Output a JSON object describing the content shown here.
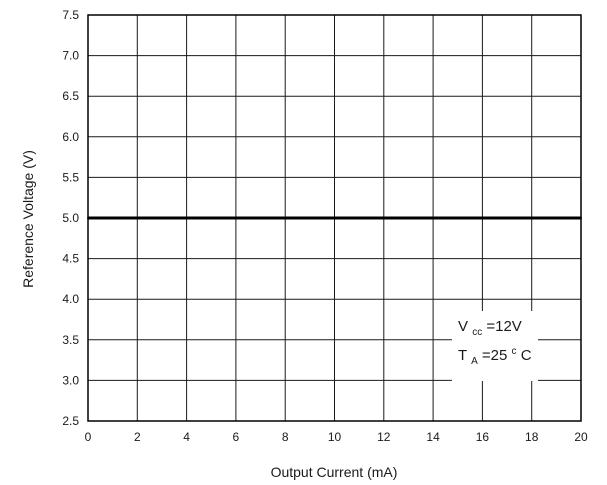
{
  "chart_data": {
    "type": "line",
    "title": "",
    "xlabel": "Output Current (mA)",
    "ylabel": "Reference Voltage (V)",
    "xlim": [
      0,
      20
    ],
    "ylim": [
      2.5,
      7.5
    ],
    "xticks": [
      "0",
      "2",
      "4",
      "6",
      "8",
      "10",
      "12",
      "14",
      "16",
      "18",
      "20"
    ],
    "yticks": [
      "2.5",
      "3.0",
      "3.5",
      "4.0",
      "4.5",
      "5.0",
      "5.5",
      "6.0",
      "6.5",
      "7.0",
      "7.5"
    ],
    "grid": true,
    "legend": "none",
    "series": [
      {
        "x": [
          0,
          2,
          4,
          6,
          8,
          10,
          12,
          14,
          16,
          18,
          20
        ],
        "y": [
          5.0,
          5.0,
          5.0,
          5.0,
          5.0,
          5.0,
          5.0,
          5.0,
          5.0,
          5.0,
          5.0
        ],
        "color": "#000000"
      }
    ],
    "annotation": {
      "line1": {
        "main": "V",
        "sub": "cc",
        "rest": "=12V"
      },
      "line2": {
        "main": "T",
        "sub": "A",
        "eq": "=25",
        "sup": "c",
        "rest": "C"
      }
    }
  }
}
